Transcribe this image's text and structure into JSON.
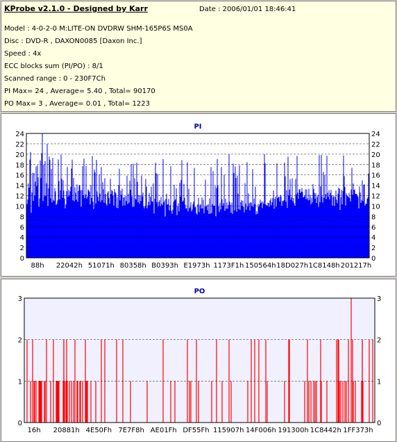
{
  "header": {
    "title": "KProbe v2.1.0 - Designed by Karr",
    "date": "Date : 2006/01/01 18:46:41",
    "model": "Model : 4-0-2-0 M:LITE-ON DVDRW SHM-165P6S MS0A",
    "disc": "Disc : DVD-R , DAXON0085 [Daxon Inc.]",
    "speed": "Speed : 4x",
    "ecc": "ECC blocks sum (PI/PO) : 8/1",
    "scanned": "Scanned range : 0 - 230F7Ch",
    "pi_stats": "PI Max= 24 , Average= 5.40 , Total= 90170",
    "po_stats": "PO Max= 3 , Average= 0.01 , Total= 1223"
  },
  "chart_data": [
    {
      "type": "bar",
      "title": "PI",
      "ylim": [
        0,
        24
      ],
      "yticks": [
        0,
        2,
        4,
        6,
        8,
        10,
        12,
        14,
        16,
        18,
        20,
        22,
        24
      ],
      "xtick_labels": [
        "88h",
        "22042h",
        "51071h",
        "80358h",
        "B0393h",
        "E1973h",
        "1173F1h",
        "150564h",
        "18D027h",
        "1C8148h",
        "201217h"
      ],
      "color": "#0000ff",
      "grid": "dashed",
      "baseline_range": [
        7,
        13
      ],
      "peak_range": [
        13,
        24
      ],
      "max": 24,
      "average": 5.4,
      "total": 90170
    },
    {
      "type": "bar",
      "title": "PO",
      "ylim": [
        0,
        3
      ],
      "yticks": [
        0,
        1,
        2,
        3
      ],
      "xtick_labels": [
        "16h",
        "20881h",
        "4E50Fh",
        "7E7F8h",
        "AE01Fh",
        "DF55Fh",
        "115907h",
        "14F006h",
        "191300h",
        "1C8442h",
        "1FF373h"
      ],
      "color": "#ff0000",
      "grid": "dashed",
      "max": 3,
      "average": 0.01,
      "total": 1223
    }
  ]
}
